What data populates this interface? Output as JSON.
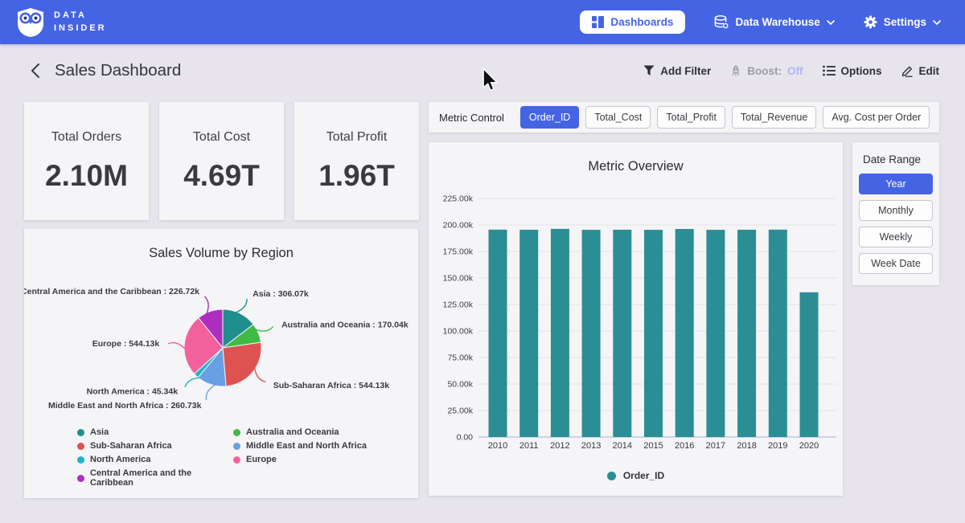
{
  "navbar": {
    "brand_line1": "DATA",
    "brand_line2": "INSIDER",
    "dashboards_label": "Dashboards",
    "data_warehouse_label": "Data Warehouse",
    "settings_label": "Settings"
  },
  "header": {
    "title": "Sales Dashboard",
    "add_filter_label": "Add Filter",
    "boost_label": "Boost:",
    "boost_state": "Off",
    "options_label": "Options",
    "edit_label": "Edit"
  },
  "kpis": [
    {
      "label": "Total Orders",
      "value": "2.10M"
    },
    {
      "label": "Total Cost",
      "value": "4.69T"
    },
    {
      "label": "Total Profit",
      "value": "1.96T"
    }
  ],
  "metric_control": {
    "label": "Metric Control",
    "options": [
      {
        "label": "Order_ID",
        "selected": true
      },
      {
        "label": "Total_Cost",
        "selected": false
      },
      {
        "label": "Total_Profit",
        "selected": false
      },
      {
        "label": "Total_Revenue",
        "selected": false
      },
      {
        "label": "Avg. Cost per Order",
        "selected": false
      }
    ]
  },
  "date_range": {
    "label": "Date Range",
    "options": [
      {
        "label": "Year",
        "selected": true
      },
      {
        "label": "Monthly",
        "selected": false
      },
      {
        "label": "Weekly",
        "selected": false
      },
      {
        "label": "Week Date",
        "selected": false
      }
    ]
  },
  "colors": {
    "accent_blue": "#4564e4",
    "bar_teal": "#2b8e94",
    "boost_off_blue": "#aab7f4",
    "page_bg": "#e7e5eb",
    "panel_bg": "#f5f4f6"
  },
  "chart_data": [
    {
      "id": "sales-by-region",
      "type": "pie",
      "title": "Sales Volume by Region",
      "unit": "k",
      "slices": [
        {
          "label": "Asia",
          "value": 306.07,
          "display": "306.07k",
          "color": "#1f8f8d"
        },
        {
          "label": "Australia and Oceania",
          "value": 170.04,
          "display": "170.04k",
          "color": "#3fba45"
        },
        {
          "label": "Sub-Saharan Africa",
          "value": 544.13,
          "display": "544.13k",
          "color": "#dd5352"
        },
        {
          "label": "Middle East and North Africa",
          "value": 260.73,
          "display": "260.73k",
          "color": "#699fe5"
        },
        {
          "label": "North America",
          "value": 45.34,
          "display": "45.34k",
          "color": "#19b7c9"
        },
        {
          "label": "Europe",
          "value": 544.13,
          "display": "544.13k",
          "color": "#f2619b"
        },
        {
          "label": "Central America and the Caribbean",
          "value": 226.72,
          "display": "226.72k",
          "color": "#ad2fc0"
        }
      ],
      "legend_columns": [
        [
          0,
          2,
          4,
          6
        ],
        [
          1,
          3,
          5
        ]
      ],
      "legend_position": "bottom"
    },
    {
      "id": "metric-overview",
      "type": "bar",
      "title": "Metric Overview",
      "categories": [
        "2010",
        "2011",
        "2012",
        "2013",
        "2014",
        "2015",
        "2016",
        "2017",
        "2018",
        "2019",
        "2020"
      ],
      "series": [
        {
          "name": "Order_ID",
          "color": "#2b8e94",
          "values": [
            195600,
            195500,
            196300,
            195400,
            195500,
            195400,
            196200,
            195400,
            195500,
            195600,
            136500
          ]
        }
      ],
      "xlabel": "",
      "ylabel": "",
      "ylim": [
        0,
        225000
      ],
      "y_ticks": [
        {
          "v": 0,
          "label": "0.00"
        },
        {
          "v": 25000,
          "label": "25.00k"
        },
        {
          "v": 50000,
          "label": "50.00k"
        },
        {
          "v": 75000,
          "label": "75.00k"
        },
        {
          "v": 100000,
          "label": "100.00k"
        },
        {
          "v": 125000,
          "label": "125.00k"
        },
        {
          "v": 150000,
          "label": "150.00k"
        },
        {
          "v": 175000,
          "label": "175.00k"
        },
        {
          "v": 200000,
          "label": "200.00k"
        },
        {
          "v": 225000,
          "label": "225.00k"
        }
      ],
      "grid": true,
      "legend_position": "bottom"
    }
  ]
}
